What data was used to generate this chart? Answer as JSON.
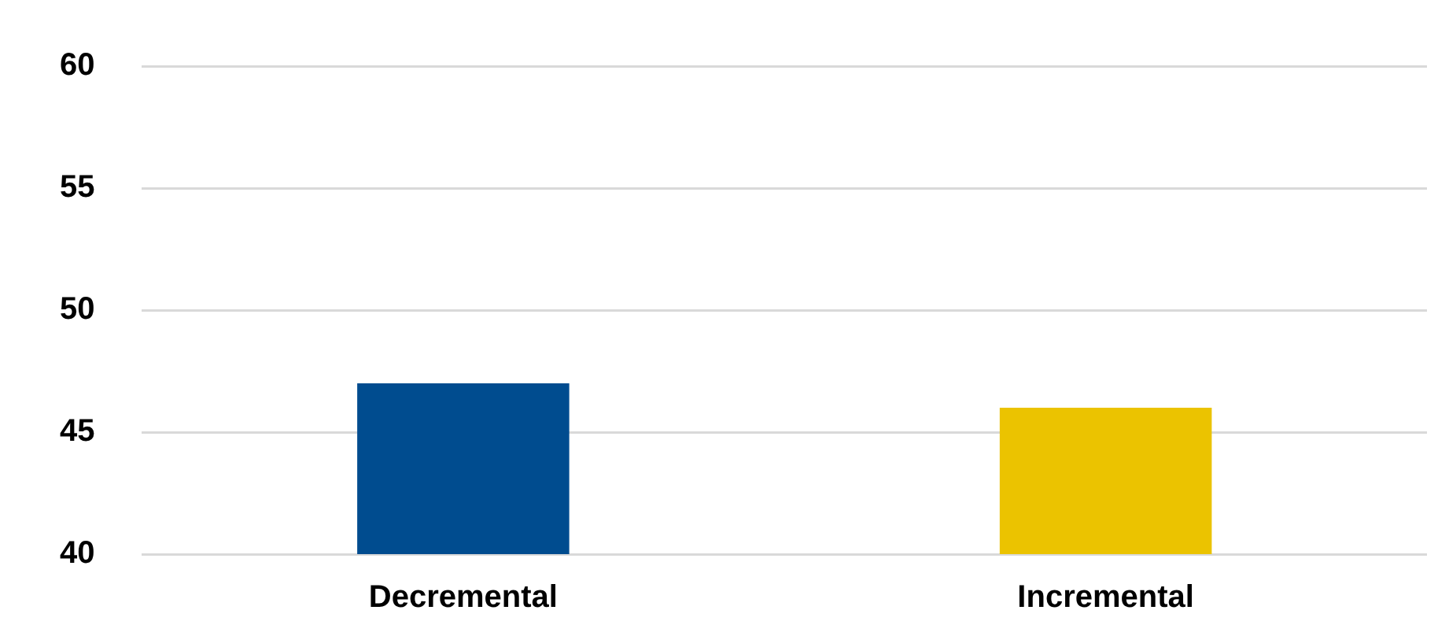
{
  "chart_data": {
    "type": "bar",
    "categories": [
      "Decremental",
      "Incremental"
    ],
    "values": [
      47,
      46
    ],
    "colors": [
      "#004c8f",
      "#ebc300"
    ],
    "ylim": [
      40,
      60
    ],
    "yticks": [
      40,
      45,
      50,
      55,
      60
    ],
    "grid": "y",
    "legend": false
  }
}
